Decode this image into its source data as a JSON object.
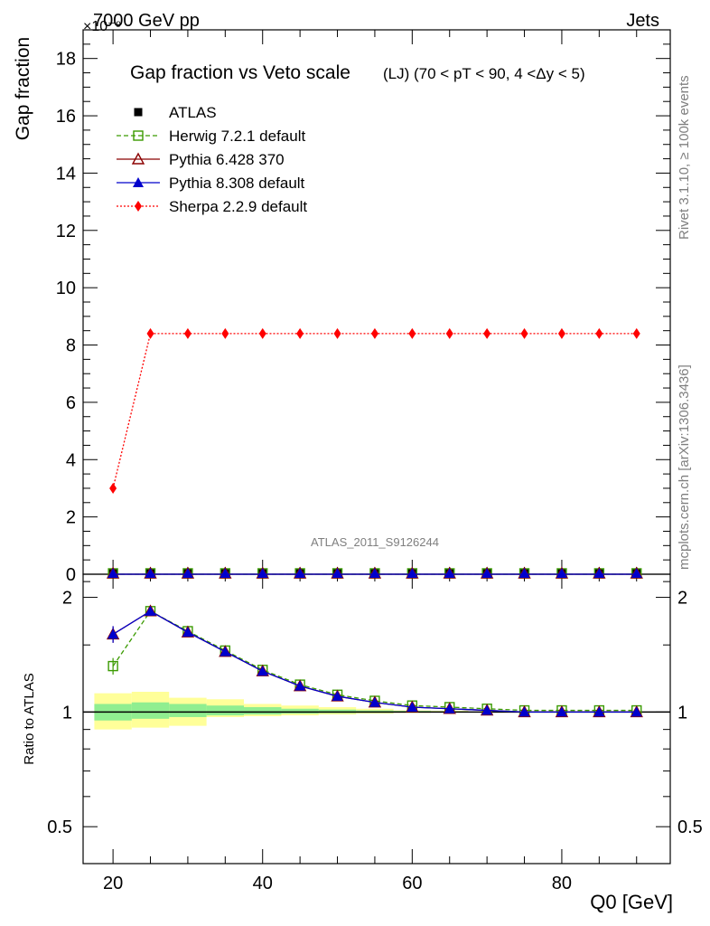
{
  "header": {
    "energy": "7000 GeV pp",
    "multiplier": "×10⁻⁹",
    "process": "Jets",
    "title": "Gap fraction vs Veto scale",
    "subtitle": "(LJ) (70 < pT <  90, 4 <Δy < 5)",
    "analysis": "ATLAS_2011_S9126244",
    "side_rivet": "Rivet 3.1.10, ≥ 100k events",
    "side_mcplots": "mcplots.cern.ch [arXiv:1306.3436]"
  },
  "colors": {
    "atlas": "#000000",
    "herwig": "#3a9a00",
    "pythia6": "#8b0000",
    "pythia8": "#0000cc",
    "sherpa": "#ff0000",
    "band_inner": "#90ee90",
    "band_outer": "#ffff99"
  },
  "chart_data": [
    {
      "type": "line",
      "panel": "main",
      "ylabel": "Gap fraction",
      "ylim": [
        0,
        19
      ],
      "xlim": [
        16,
        94.5
      ],
      "yticks": [
        0,
        2,
        4,
        6,
        8,
        10,
        12,
        14,
        16,
        18
      ],
      "ytick_labels": [
        "0",
        "2",
        "4",
        "6",
        "8",
        "10",
        "12",
        "14",
        "16",
        "18"
      ],
      "x": [
        20,
        25,
        30,
        35,
        40,
        45,
        50,
        55,
        60,
        65,
        70,
        75,
        80,
        85,
        90
      ],
      "legend": [
        {
          "name": "ATLAS",
          "key": "atlas"
        },
        {
          "name": "Herwig 7.2.1 default",
          "key": "herwig"
        },
        {
          "name": "Pythia 6.428 370",
          "key": "pythia6"
        },
        {
          "name": "Pythia 8.308 default",
          "key": "pythia8"
        },
        {
          "name": "Sherpa 2.2.9 default",
          "key": "sherpa"
        }
      ],
      "series": [
        {
          "name": "ATLAS",
          "key": "atlas",
          "values": [
            0,
            0,
            0,
            0,
            0,
            0,
            0,
            0,
            0,
            0,
            0,
            0,
            0,
            0,
            0
          ]
        },
        {
          "name": "Herwig 7.2.1 default",
          "key": "herwig",
          "values": [
            0,
            0,
            0,
            0,
            0,
            0,
            0,
            0,
            0,
            0,
            0,
            0,
            0,
            0,
            0
          ]
        },
        {
          "name": "Pythia 6.428 370",
          "key": "pythia6",
          "values": [
            0,
            0,
            0,
            0,
            0,
            0,
            0,
            0,
            0,
            0,
            0,
            0,
            0,
            0,
            0
          ]
        },
        {
          "name": "Pythia 8.308 default",
          "key": "pythia8",
          "values": [
            0,
            0,
            0,
            0,
            0,
            0,
            0,
            0,
            0,
            0,
            0,
            0,
            0,
            0,
            0
          ]
        },
        {
          "name": "Sherpa 2.2.9 default",
          "key": "sherpa",
          "values": [
            3.0,
            8.4,
            8.4,
            8.4,
            8.4,
            8.4,
            8.4,
            8.4,
            8.4,
            8.4,
            8.4,
            8.4,
            8.4,
            8.4,
            8.4
          ]
        }
      ]
    },
    {
      "type": "line",
      "panel": "ratio",
      "ylabel": "Ratio to ATLAS",
      "xlabel": "Q0 [GeV]",
      "ylim_log": [
        0.4,
        2.3
      ],
      "xlim": [
        16,
        94.5
      ],
      "xticks": [
        20,
        40,
        60,
        80
      ],
      "xtick_labels": [
        "20",
        "40",
        "60",
        "80"
      ],
      "yticks": [
        0.5,
        1,
        2
      ],
      "ytick_labels": [
        "0.5",
        "1",
        "2"
      ],
      "x": [
        20,
        25,
        30,
        35,
        40,
        45,
        50,
        55,
        60,
        65,
        70,
        75,
        80,
        85,
        90
      ],
      "series": [
        {
          "name": "Herwig 7.2.1 default",
          "key": "herwig",
          "values": [
            1.32,
            1.84,
            1.63,
            1.45,
            1.29,
            1.18,
            1.11,
            1.07,
            1.04,
            1.03,
            1.02,
            1.01,
            1.01,
            1.01,
            1.01
          ]
        },
        {
          "name": "Pythia 6.428 370",
          "key": "pythia6",
          "values": [
            1.6,
            1.84,
            1.62,
            1.44,
            1.28,
            1.17,
            1.1,
            1.06,
            1.03,
            1.02,
            1.01,
            1.0,
            1.0,
            1.0,
            1.0
          ]
        },
        {
          "name": "Pythia 8.308 default",
          "key": "pythia8",
          "values": [
            1.6,
            1.84,
            1.62,
            1.44,
            1.28,
            1.17,
            1.1,
            1.06,
            1.03,
            1.02,
            1.01,
            1.0,
            1.0,
            1.0,
            1.0
          ]
        }
      ],
      "bands": {
        "edges": [
          17.5,
          22.5,
          27.5,
          32.5,
          37.5,
          42.5,
          47.5,
          52.5,
          57.5,
          62.5,
          67.5
        ],
        "inner_low": [
          0.95,
          0.96,
          0.97,
          0.98,
          0.985,
          0.99,
          0.993,
          0.995,
          0.997,
          0.998
        ],
        "inner_high": [
          1.05,
          1.06,
          1.05,
          1.04,
          1.03,
          1.02,
          1.015,
          1.01,
          1.007,
          1.005
        ],
        "outer_low": [
          0.9,
          0.91,
          0.92,
          0.97,
          0.975,
          0.98,
          0.985,
          0.99,
          0.995,
          0.997
        ],
        "outer_high": [
          1.12,
          1.13,
          1.09,
          1.08,
          1.05,
          1.04,
          1.03,
          1.02,
          1.01,
          1.008
        ]
      }
    }
  ]
}
